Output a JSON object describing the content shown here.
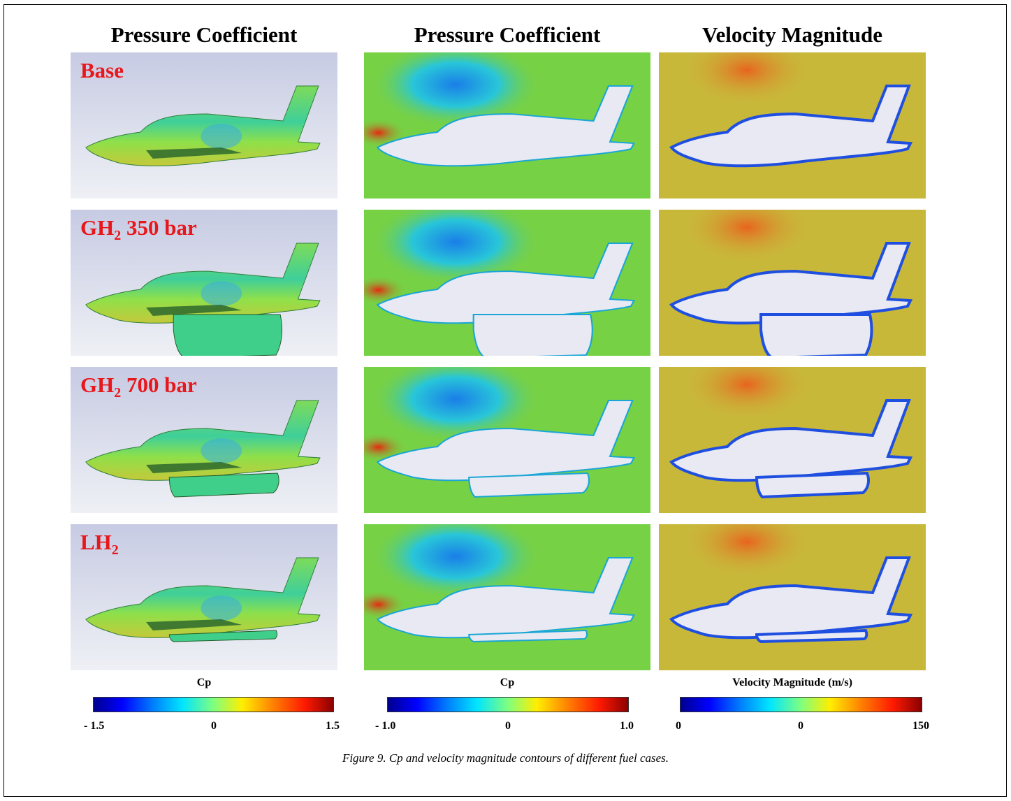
{
  "column_titles": [
    "Pressure Coefficient",
    "Pressure Coefficient",
    "Velocity Magnitude"
  ],
  "cases": [
    {
      "label_main": "Base",
      "label_sub": "",
      "label_rest": ""
    },
    {
      "label_main": "GH",
      "label_sub": "2",
      "label_rest": " 350 bar"
    },
    {
      "label_main": "GH",
      "label_sub": "2",
      "label_rest": " 700 bar"
    },
    {
      "label_main": "LH",
      "label_sub": "2",
      "label_rest": ""
    }
  ],
  "colorbars": [
    {
      "title": "Cp",
      "min": "- 1.5",
      "mid": "0",
      "max": "1.5"
    },
    {
      "title": "Cp",
      "min": "- 1.0",
      "mid": "0",
      "max": "1.0"
    },
    {
      "title": "Velocity Magnitude (m/s)",
      "min": "0",
      "mid": "0",
      "max": "150"
    }
  ],
  "caption": "Figure 9. Cp and velocity magnitude contours of different fuel cases.",
  "colors": {
    "label_red": "#e8171b",
    "cp_field": "#77d144",
    "vel_field": "#c8b83a",
    "body": "#e8e9f2"
  }
}
